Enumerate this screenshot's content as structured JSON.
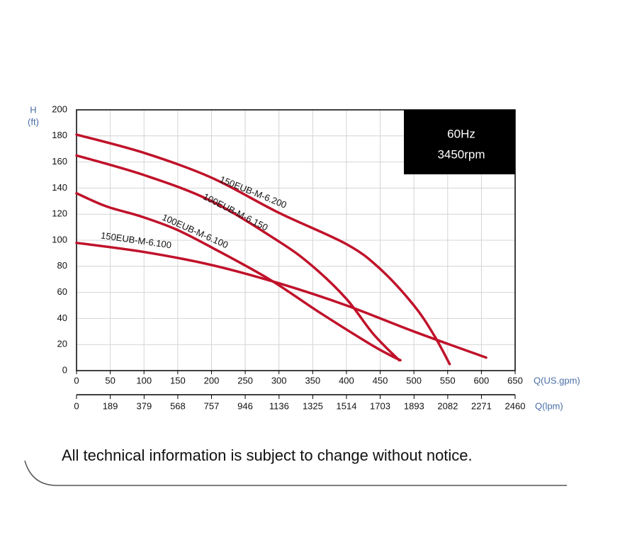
{
  "chart_data": {
    "type": "line",
    "ylabel": [
      "H",
      "(ft)"
    ],
    "xlabel": "Q(US.gpm)",
    "x2label": "Q(lpm)",
    "xlim": [
      0,
      650
    ],
    "xticks": [
      0,
      50,
      100,
      150,
      200,
      250,
      300,
      350,
      400,
      450,
      500,
      550,
      600,
      650
    ],
    "x2lim": [
      0,
      2460
    ],
    "x2ticks": [
      0,
      189,
      379,
      568,
      757,
      946,
      1136,
      1325,
      1514,
      1703,
      1893,
      2082,
      2271,
      2460
    ],
    "ylim": [
      0,
      200
    ],
    "yticks": [
      0,
      20,
      40,
      60,
      80,
      100,
      120,
      140,
      160,
      180,
      200
    ],
    "grid": true,
    "annotations": [
      "60Hz",
      "3450rpm"
    ],
    "series": [
      {
        "name": "150EUB-M-6.200",
        "color": "#c0122a",
        "x": [
          0,
          100,
          200,
          300,
          400,
          450,
          500,
          530,
          553
        ],
        "values": [
          181,
          167,
          148,
          121,
          97,
          78,
          50,
          27,
          5
        ]
      },
      {
        "name": "100EUB-M-6.150",
        "color": "#c0122a",
        "x": [
          0,
          100,
          200,
          300,
          350,
          400,
          440,
          478
        ],
        "values": [
          165,
          150,
          130,
          99,
          80,
          55,
          28,
          8
        ]
      },
      {
        "name": "100EUB-M-6.100",
        "color": "#c0122a",
        "x": [
          0,
          44,
          97,
          149,
          202,
          286,
          359,
          433,
          464,
          480
        ],
        "values": [
          136,
          126,
          118,
          108,
          94,
          70,
          45,
          21,
          12,
          8
        ]
      },
      {
        "name": "150EUB-M-6.100",
        "color": "#c0122a",
        "x": [
          0,
          100,
          200,
          300,
          400,
          500,
          607
        ],
        "values": [
          98,
          91,
          81,
          67,
          50,
          30,
          10
        ]
      }
    ]
  },
  "footer": "All technical information is subject to change without notice."
}
